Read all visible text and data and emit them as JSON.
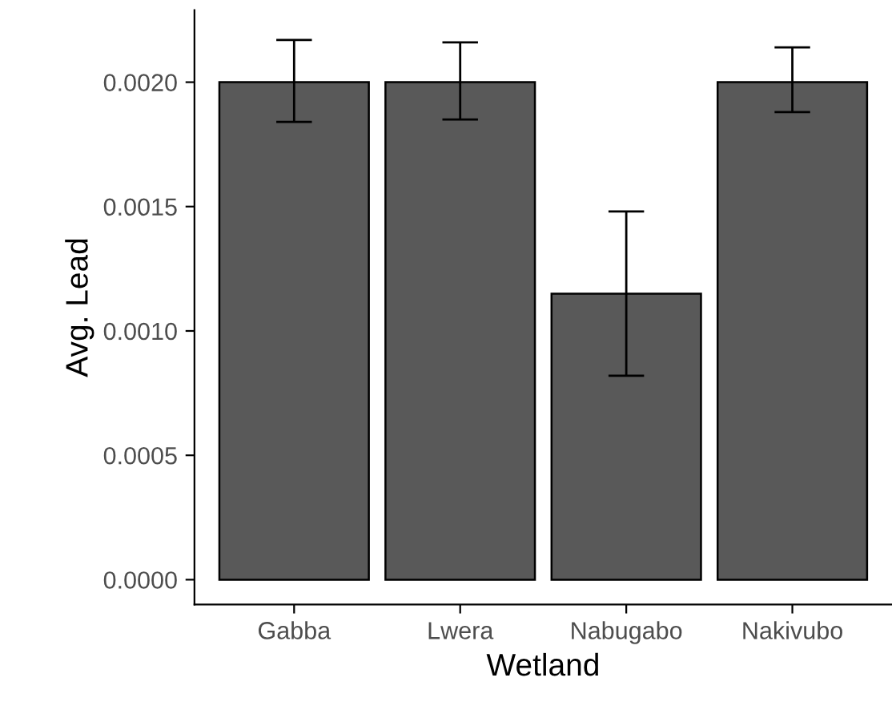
{
  "chart_data": {
    "type": "bar",
    "xlabel": "Wetland",
    "ylabel": "Avg. Lead",
    "categories": [
      "Gabba",
      "Lwera",
      "Nabugabo",
      "Nakivubo"
    ],
    "values": [
      0.002,
      0.002,
      0.00115,
      0.002
    ],
    "errors": [
      [
        0.00184,
        0.00217
      ],
      [
        0.00185,
        0.00216
      ],
      [
        0.00082,
        0.00148
      ],
      [
        0.00188,
        0.00214
      ]
    ],
    "color": "#595959",
    "ylim": [
      -0.0001,
      0.00229
    ],
    "yticks": [
      {
        "value": 0,
        "label": "0.0000"
      },
      {
        "value": 0.0005,
        "label": "0.0005"
      },
      {
        "value": 0.001,
        "label": "0.0010"
      },
      {
        "value": 0.0015,
        "label": "0.0015"
      },
      {
        "value": 0.002,
        "label": "0.0020"
      }
    ],
    "grid": false
  }
}
